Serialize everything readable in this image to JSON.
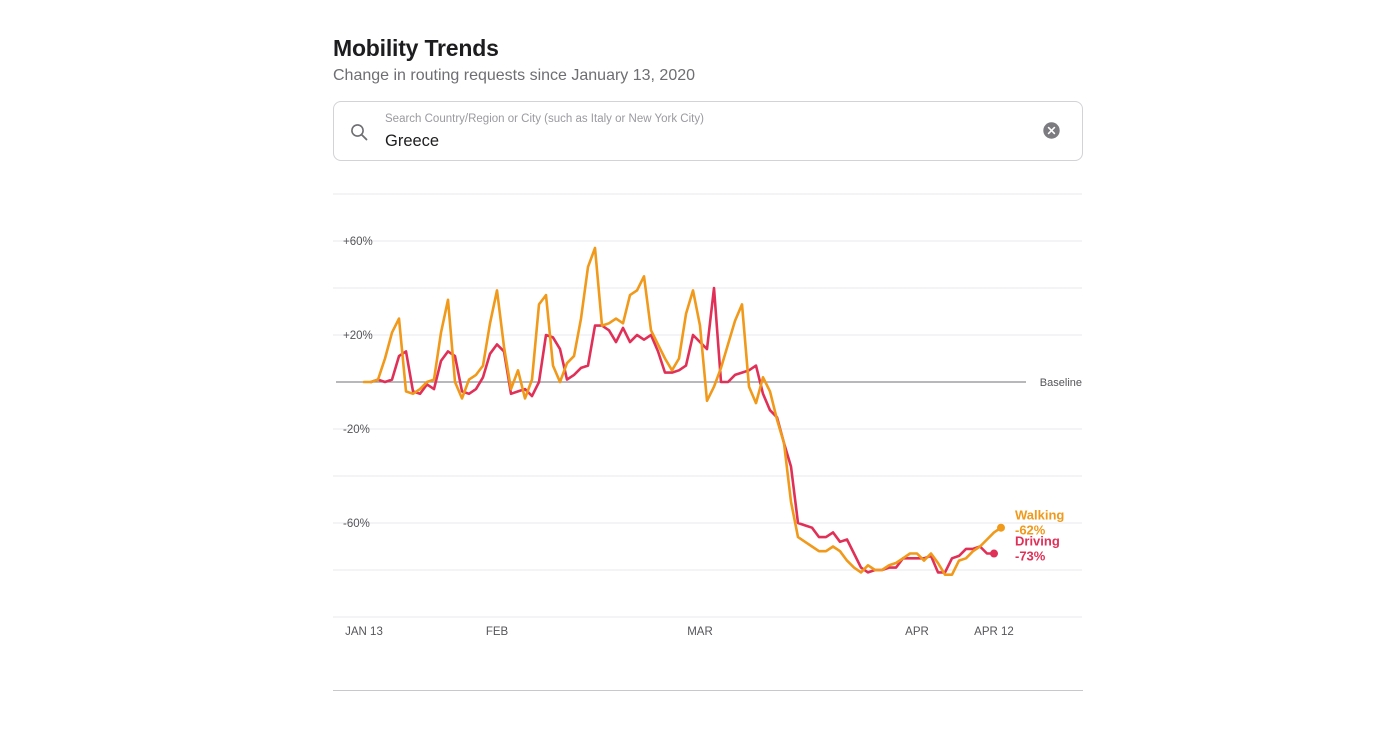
{
  "header": {
    "title": "Mobility Trends",
    "subtitle": "Change in routing requests since January 13, 2020"
  },
  "search": {
    "placeholder": "Search Country/Region or City (such as Italy or New York City)",
    "value": "Greece"
  },
  "icons": {
    "search": "search-icon",
    "clear": "clear-icon"
  },
  "chart_data": {
    "type": "line",
    "ylim": [
      -100,
      80
    ],
    "yticks": [
      {
        "value": 60,
        "label": "+60%"
      },
      {
        "value": 20,
        "label": "+20%"
      },
      {
        "value": -20,
        "label": "-20%"
      },
      {
        "value": -60,
        "label": "-60%"
      }
    ],
    "gridlines": [
      80,
      60,
      40,
      20,
      -20,
      -40,
      -60,
      -80,
      -100
    ],
    "baseline": {
      "value": 0,
      "label": "Baseline"
    },
    "xticks": [
      {
        "day": 0,
        "label": "JAN 13"
      },
      {
        "day": 19,
        "label": "FEB"
      },
      {
        "day": 48,
        "label": "MAR"
      },
      {
        "day": 79,
        "label": "APR"
      },
      {
        "day": 90,
        "label": "APR 12"
      }
    ],
    "series": [
      {
        "name": "Walking",
        "color": "#f0991a",
        "end_label": "-62%",
        "values": [
          0,
          0,
          1,
          10,
          21,
          27,
          -4,
          -5,
          -3,
          0,
          1,
          21,
          35,
          0,
          -7,
          1,
          3,
          7,
          25,
          39,
          15,
          -3,
          5,
          -7,
          1,
          33,
          37,
          7,
          0,
          8,
          11,
          27,
          49,
          57,
          24,
          25,
          27,
          25,
          37,
          39,
          45,
          22,
          16,
          10,
          5,
          10,
          29,
          39,
          24,
          -8,
          -2,
          6,
          16,
          26,
          33,
          -2,
          -9,
          2,
          -4,
          -16,
          -26,
          -51,
          -66,
          -68,
          -70,
          -72,
          -72,
          -70,
          -72,
          -76,
          -79,
          -81,
          -78,
          -80,
          -80,
          -78,
          -77,
          -75,
          -73,
          -73,
          -76,
          -73,
          -77,
          -82,
          -82,
          -76,
          -75,
          -72,
          -70,
          -67,
          -64,
          -62
        ],
        "label_first_day": 0
      },
      {
        "name": "Driving",
        "color": "#e03057",
        "end_label": "-73%",
        "values": [
          0,
          1,
          0,
          1,
          11,
          13,
          -4,
          -5,
          -1,
          -3,
          9,
          13,
          11,
          -4,
          -5,
          -3,
          2,
          12,
          16,
          13,
          -5,
          -4,
          -3,
          -6,
          0,
          20,
          19,
          14,
          1,
          3,
          6,
          7,
          24,
          24,
          22,
          17,
          23,
          17,
          20,
          18,
          20,
          13,
          4,
          4,
          5,
          7,
          20,
          17,
          14,
          40,
          0,
          0,
          3,
          4,
          5,
          7,
          -5,
          -12,
          -15,
          -26,
          -36,
          -60,
          -61,
          -62,
          -66,
          -66,
          -64,
          -68,
          -67,
          -73,
          -79,
          -81,
          -80,
          -80,
          -79,
          -79,
          -75,
          -75,
          -75,
          -75,
          -74,
          -81,
          -81,
          -75,
          -74,
          -71,
          -71,
          -70,
          -73,
          -73
        ],
        "label_first_day": 1
      }
    ]
  }
}
